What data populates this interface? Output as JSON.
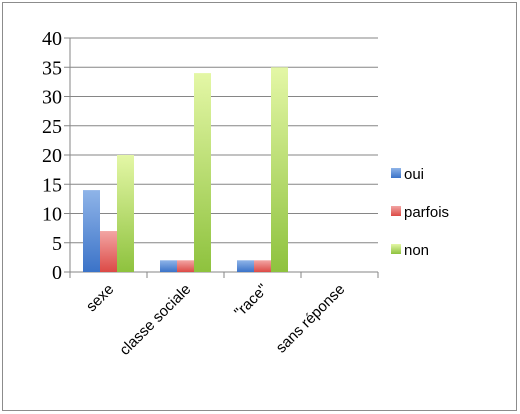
{
  "chart_data": {
    "type": "bar",
    "categories": [
      "sexe",
      "classe sociale",
      "\"race\"",
      "sans réponse"
    ],
    "series": [
      {
        "name": "oui",
        "values": [
          14,
          2,
          2,
          0
        ],
        "color_top": "#8fb4e8",
        "color_bottom": "#3b73c8"
      },
      {
        "name": "parfois",
        "values": [
          7,
          2,
          2,
          0
        ],
        "color_top": "#f2a5a3",
        "color_bottom": "#dc4a46"
      },
      {
        "name": "non",
        "values": [
          20,
          34,
          35,
          0
        ],
        "color_top": "#e4f7a6",
        "color_bottom": "#8ec23e"
      }
    ],
    "ylim": [
      0,
      40
    ],
    "yticks": [
      "0",
      "5",
      "10",
      "15",
      "20",
      "25",
      "30",
      "35",
      "40"
    ],
    "grid": true,
    "legend_position": "right",
    "title": "",
    "xlabel": "",
    "ylabel": ""
  }
}
